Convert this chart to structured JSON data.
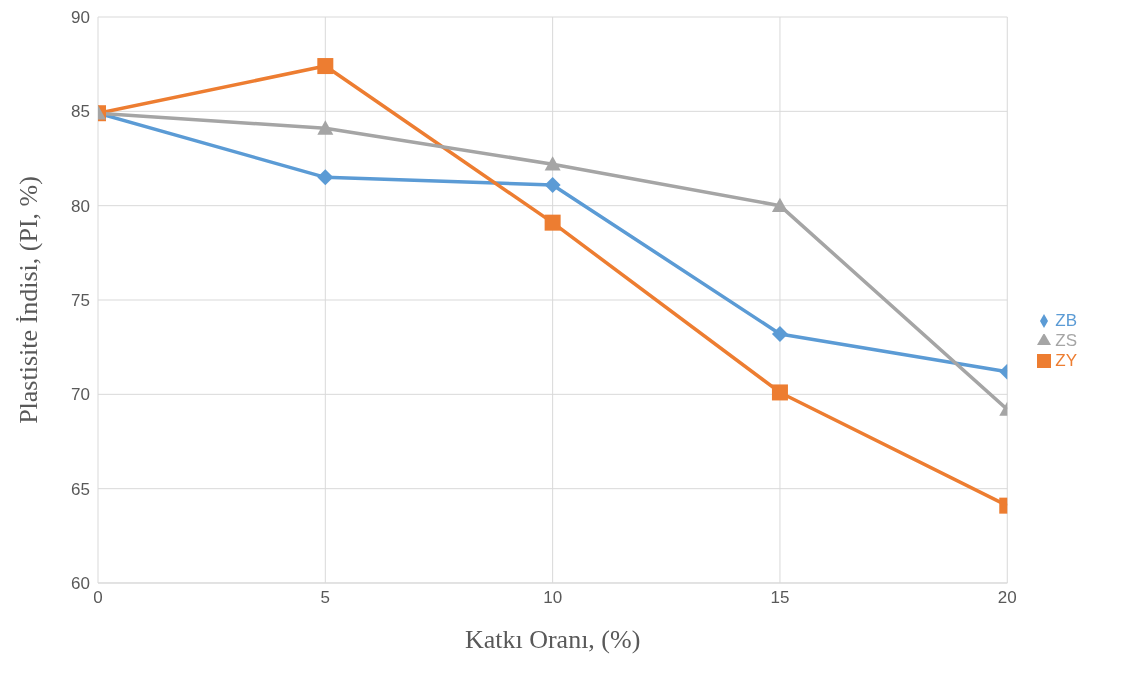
{
  "chart_data": {
    "type": "line",
    "xlabel": "Katkı Oranı, (%)",
    "ylabel": "Plastisite İndisi, (PI, %)",
    "x": [
      0,
      5,
      10,
      15,
      20
    ],
    "xlim": [
      0,
      20
    ],
    "xticks": [
      0,
      5,
      10,
      15,
      20
    ],
    "ylim": [
      60,
      90
    ],
    "yticks": [
      60,
      65,
      70,
      75,
      80,
      85,
      90
    ],
    "grid": true,
    "legend": "right",
    "series": [
      {
        "name": "ZB",
        "color": "#5b9bd5",
        "marker": "diamond",
        "values": [
          84.9,
          81.5,
          81.1,
          73.2,
          71.2
        ]
      },
      {
        "name": "ZY",
        "color": "#ed7d31",
        "marker": "square",
        "values": [
          84.9,
          87.4,
          79.1,
          70.1,
          64.1
        ]
      },
      {
        "name": "ZS",
        "color": "#a5a5a5",
        "marker": "triangle",
        "values": [
          84.9,
          84.1,
          82.2,
          80.0,
          69.2
        ]
      }
    ]
  }
}
